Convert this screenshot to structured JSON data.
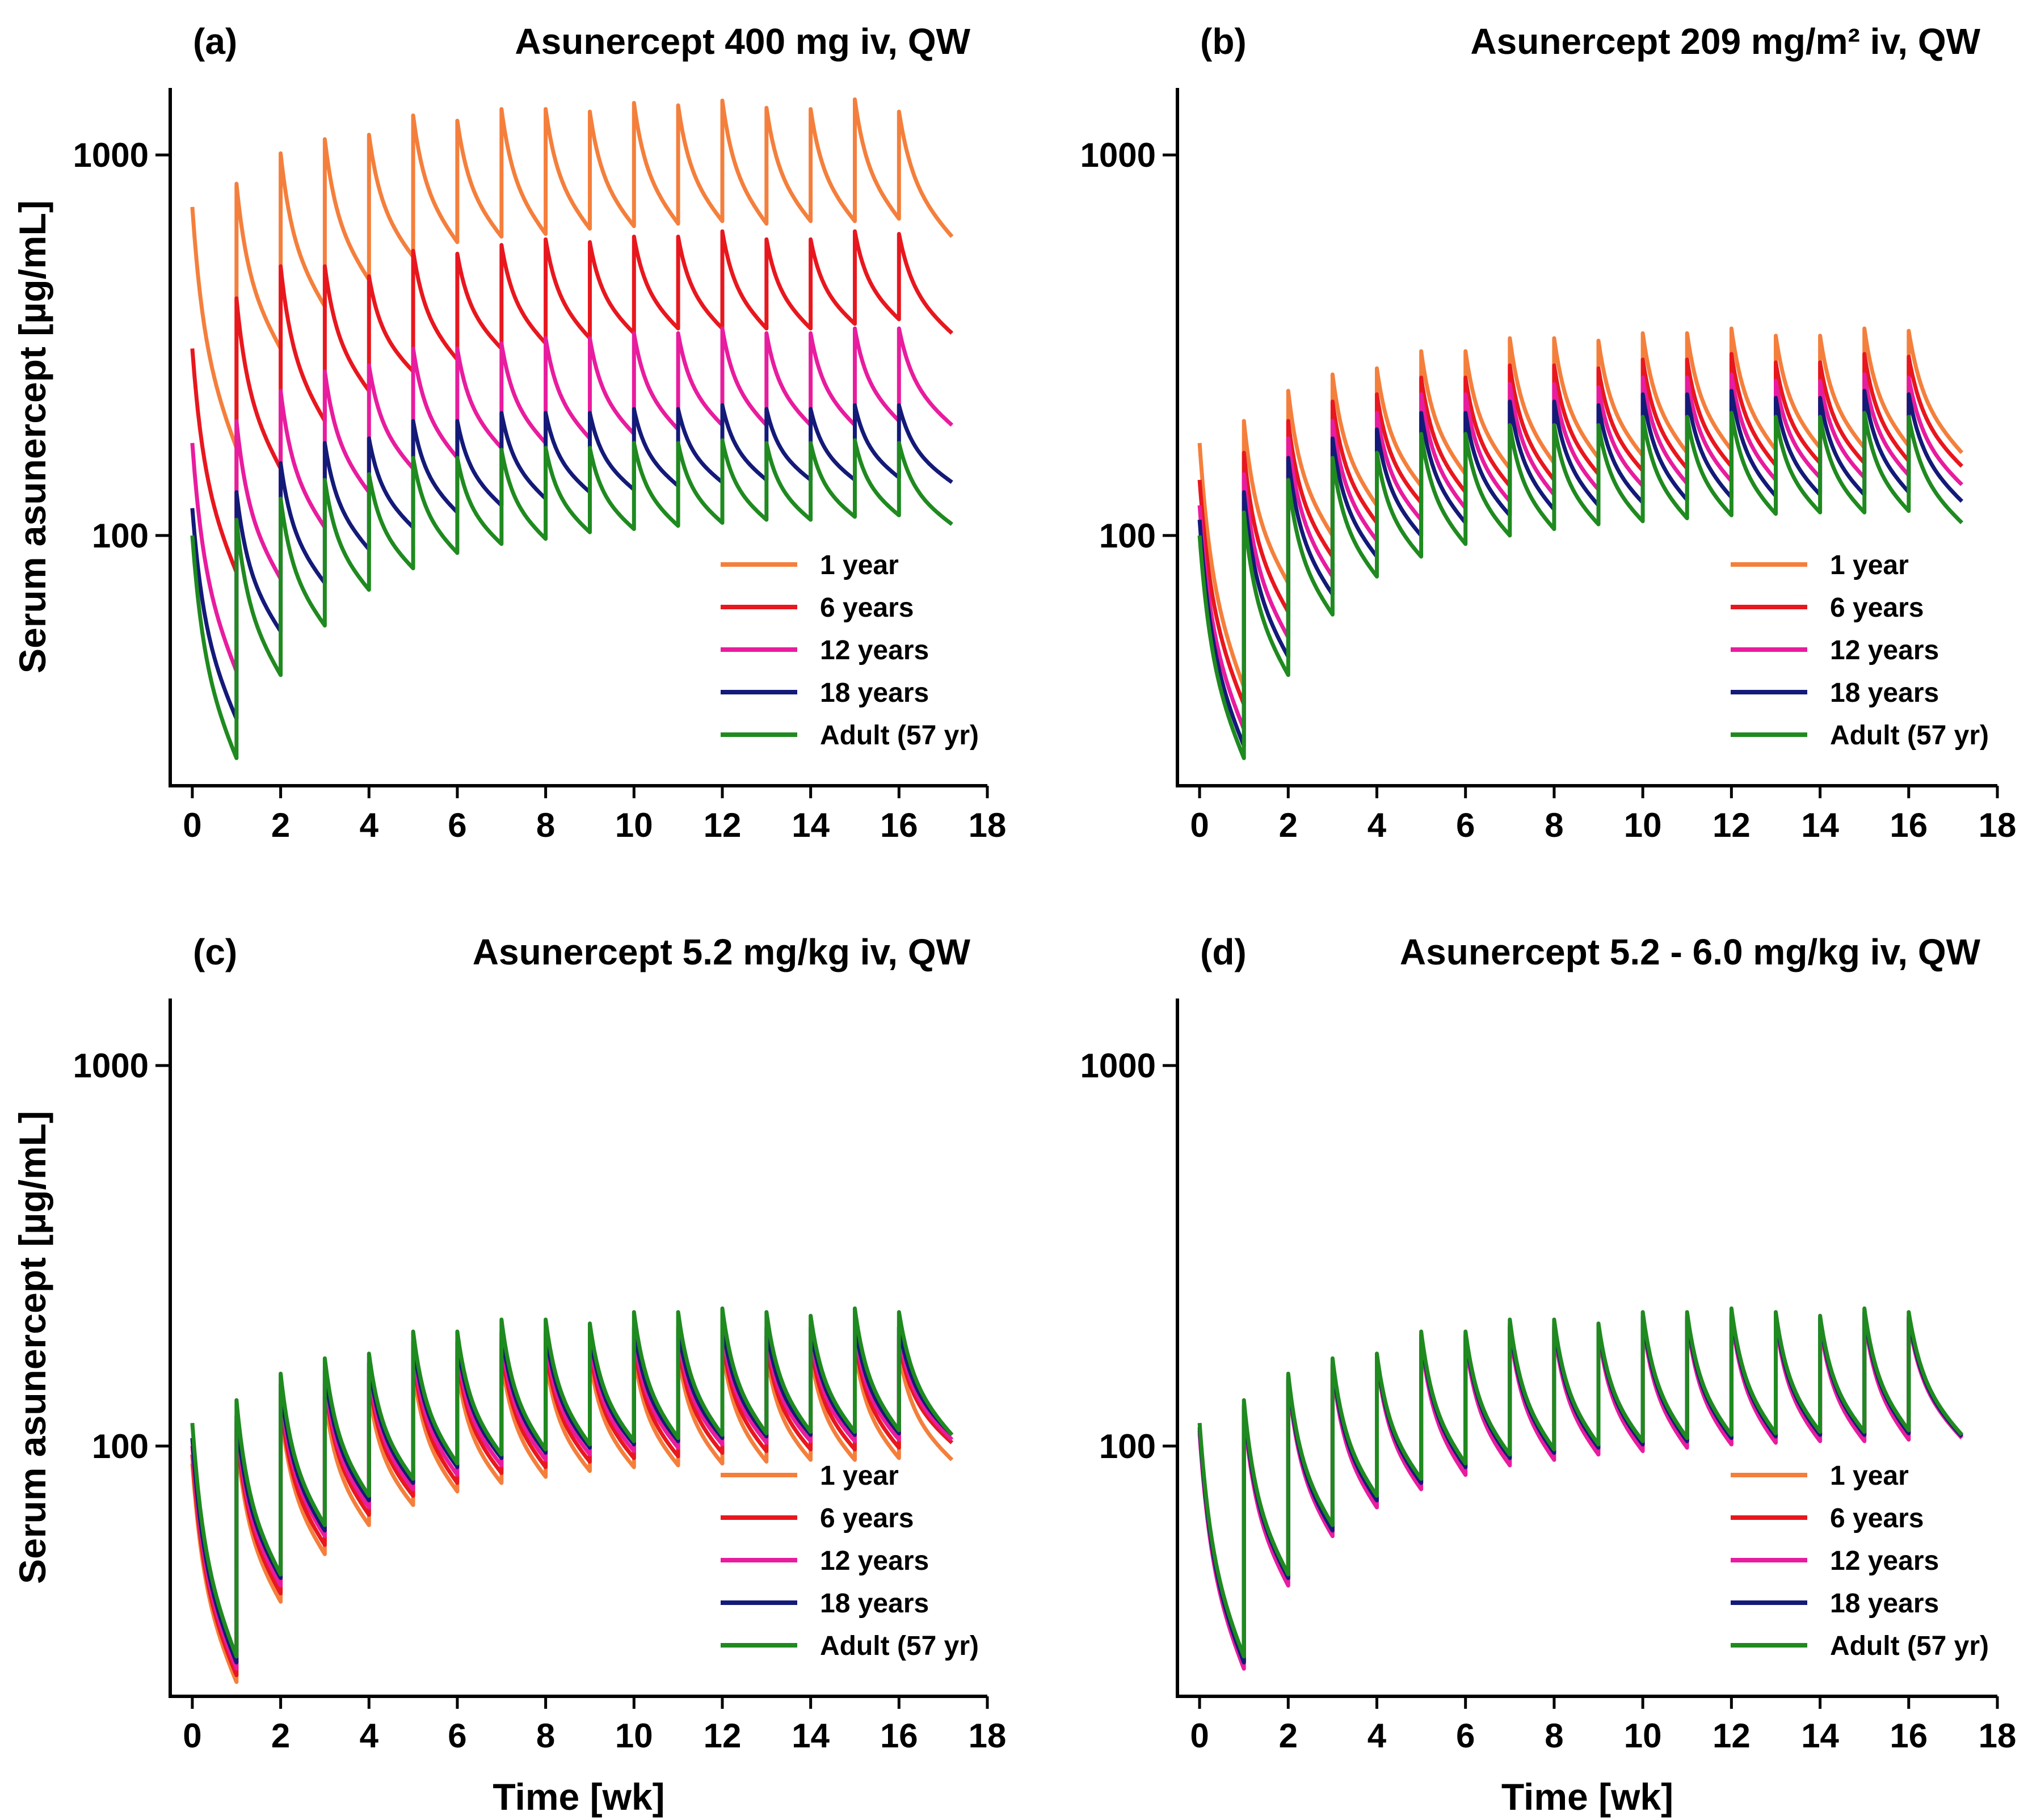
{
  "figure": {
    "x_axis_title": "Time [wk]",
    "y_axis_title": "Serum asunercept [µg/mL]"
  },
  "legend": {
    "entries": [
      {
        "label": "1 year",
        "color": "#f47f3c"
      },
      {
        "label": "6 years",
        "color": "#e8171e"
      },
      {
        "label": "12 years",
        "color": "#e81c9e"
      },
      {
        "label": "18 years",
        "color": "#141a78"
      },
      {
        "label": "Adult (57 yr)",
        "color": "#1f8a1f"
      }
    ]
  },
  "chart_data": [
    {
      "type": "line",
      "panel": "(a)",
      "title": "Asunercept 400 mg iv, QW",
      "xlabel": "",
      "ylabel": "Serum asunercept [µg/mL]",
      "yscale": "log",
      "xlim": [
        -0.5,
        18
      ],
      "ylim": [
        22,
        1500
      ],
      "xticks": [
        0,
        2,
        4,
        6,
        8,
        10,
        12,
        14,
        16,
        18
      ],
      "yticks": [
        100,
        1000
      ],
      "dosing_times_wk": [
        0,
        1,
        2,
        3,
        4,
        5,
        6,
        7,
        8,
        9,
        10,
        11,
        12,
        13,
        14,
        15,
        16
      ],
      "x_end_wk": 17.2,
      "series": [
        {
          "name": "1 year",
          "color": "#f47f3c",
          "peaks": [
            730,
            840,
            1010,
            1100,
            1130,
            1270,
            1230,
            1320,
            1320,
            1300,
            1370,
            1350,
            1390,
            1330,
            1320,
            1400,
            1300
          ],
          "troughs": [
            170,
            310,
            400,
            470,
            540,
            590,
            610,
            620,
            640,
            650,
            660,
            670,
            660,
            670,
            670,
            680,
            610
          ]
        },
        {
          "name": "6 years",
          "color": "#e8171e",
          "peaks": [
            310,
            420,
            510,
            510,
            480,
            560,
            550,
            580,
            600,
            590,
            610,
            610,
            630,
            600,
            600,
            630,
            620
          ],
          "troughs": [
            80,
            150,
            200,
            240,
            270,
            290,
            310,
            320,
            330,
            340,
            350,
            350,
            350,
            350,
            360,
            370,
            340
          ]
        },
        {
          "name": "12 years",
          "color": "#e81c9e",
          "peaks": [
            175,
            200,
            240,
            270,
            280,
            310,
            310,
            320,
            330,
            330,
            340,
            340,
            350,
            340,
            340,
            350,
            350
          ],
          "troughs": [
            44,
            77,
            105,
            130,
            150,
            160,
            170,
            175,
            180,
            185,
            190,
            195,
            195,
            195,
            195,
            200,
            195
          ]
        },
        {
          "name": "18 years",
          "color": "#141a78",
          "peaks": [
            118,
            130,
            155,
            175,
            180,
            200,
            200,
            210,
            210,
            210,
            215,
            215,
            220,
            215,
            215,
            220,
            220
          ],
          "troughs": [
            33,
            56,
            75,
            92,
            105,
            115,
            120,
            125,
            130,
            132,
            135,
            138,
            140,
            140,
            140,
            142,
            138
          ]
        },
        {
          "name": "Adult (57 yr)",
          "color": "#1f8a1f",
          "peaks": [
            100,
            110,
            125,
            140,
            145,
            160,
            160,
            168,
            170,
            170,
            175,
            175,
            178,
            175,
            175,
            178,
            175
          ],
          "troughs": [
            26,
            43,
            58,
            72,
            82,
            90,
            95,
            98,
            102,
            104,
            106,
            108,
            110,
            110,
            112,
            113,
            107
          ]
        }
      ]
    },
    {
      "type": "line",
      "panel": "(b)",
      "title": "Asunercept 209 mg/m² iv, QW",
      "xlabel": "",
      "ylabel": "",
      "yscale": "log",
      "xlim": [
        -0.5,
        18
      ],
      "ylim": [
        22,
        1500
      ],
      "xticks": [
        0,
        2,
        4,
        6,
        8,
        10,
        12,
        14,
        16,
        18
      ],
      "yticks": [
        100,
        1000
      ],
      "dosing_times_wk": [
        0,
        1,
        2,
        3,
        4,
        5,
        6,
        7,
        8,
        9,
        10,
        11,
        12,
        13,
        14,
        15,
        16
      ],
      "x_end_wk": 17.2,
      "series": [
        {
          "name": "1 year",
          "color": "#f47f3c",
          "peaks": [
            175,
            200,
            240,
            265,
            275,
            305,
            305,
            330,
            330,
            325,
            340,
            340,
            350,
            335,
            335,
            350,
            345
          ],
          "troughs": [
            40,
            75,
            100,
            120,
            135,
            145,
            150,
            155,
            160,
            162,
            165,
            168,
            168,
            170,
            170,
            172,
            165
          ]
        },
        {
          "name": "6 years",
          "color": "#e8171e",
          "peaks": [
            140,
            165,
            200,
            225,
            235,
            260,
            260,
            280,
            280,
            275,
            290,
            290,
            300,
            285,
            285,
            300,
            295
          ],
          "troughs": [
            36,
            63,
            88,
            108,
            122,
            130,
            135,
            140,
            145,
            148,
            150,
            152,
            153,
            155,
            155,
            157,
            152
          ]
        },
        {
          "name": "12 years",
          "color": "#e81c9e",
          "peaks": [
            120,
            145,
            180,
            200,
            210,
            235,
            235,
            250,
            250,
            245,
            260,
            260,
            265,
            255,
            255,
            265,
            260
          ],
          "troughs": [
            31,
            54,
            78,
            97,
            110,
            118,
            123,
            128,
            132,
            135,
            137,
            139,
            140,
            142,
            142,
            144,
            136
          ]
        },
        {
          "name": "18 years",
          "color": "#141a78",
          "peaks": [
            110,
            130,
            160,
            180,
            190,
            210,
            210,
            225,
            225,
            220,
            235,
            235,
            240,
            230,
            230,
            240,
            235
          ],
          "troughs": [
            28,
            48,
            70,
            88,
            100,
            108,
            113,
            117,
            120,
            122,
            124,
            126,
            127,
            128,
            128,
            130,
            123
          ]
        },
        {
          "name": "Adult (57 yr)",
          "color": "#1f8a1f",
          "peaks": [
            100,
            115,
            140,
            160,
            165,
            185,
            185,
            195,
            195,
            195,
            205,
            205,
            210,
            205,
            205,
            210,
            205
          ],
          "troughs": [
            26,
            43,
            62,
            78,
            88,
            95,
            100,
            104,
            107,
            109,
            111,
            113,
            114,
            115,
            115,
            116,
            108
          ]
        }
      ]
    },
    {
      "type": "line",
      "panel": "(c)",
      "title": "Asunercept 5.2 mg/kg iv, QW",
      "xlabel": "Time [wk]",
      "ylabel": "Serum asunercept [µg/mL]",
      "yscale": "log",
      "xlim": [
        -0.5,
        18
      ],
      "ylim": [
        22,
        1500
      ],
      "xticks": [
        0,
        2,
        4,
        6,
        8,
        10,
        12,
        14,
        16,
        18
      ],
      "yticks": [
        100,
        1000
      ],
      "dosing_times_wk": [
        0,
        1,
        2,
        3,
        4,
        5,
        6,
        7,
        8,
        9,
        10,
        11,
        12,
        13,
        14,
        15,
        16
      ],
      "x_end_wk": 17.2,
      "series": [
        {
          "name": "1 year",
          "color": "#f47f3c",
          "peaks": [
            90,
            105,
            125,
            135,
            140,
            160,
            160,
            170,
            170,
            170,
            175,
            175,
            180,
            175,
            175,
            180,
            175
          ],
          "troughs": [
            24,
            39,
            52,
            62,
            70,
            76,
            80,
            83,
            86,
            88,
            89,
            90,
            91,
            92,
            92,
            93,
            92
          ]
        },
        {
          "name": "6 years",
          "color": "#e8171e",
          "peaks": [
            95,
            110,
            130,
            145,
            150,
            170,
            170,
            180,
            180,
            180,
            185,
            185,
            190,
            185,
            185,
            190,
            185
          ],
          "troughs": [
            25,
            41,
            55,
            66,
            74,
            80,
            85,
            88,
            91,
            93,
            94,
            96,
            97,
            98,
            98,
            99,
            102
          ]
        },
        {
          "name": "12 years",
          "color": "#e81c9e",
          "peaks": [
            100,
            115,
            138,
            150,
            158,
            178,
            178,
            190,
            190,
            188,
            195,
            195,
            200,
            195,
            195,
            200,
            195
          ],
          "troughs": [
            26,
            43,
            58,
            69,
            77,
            84,
            89,
            92,
            95,
            97,
            99,
            101,
            102,
            103,
            103,
            104,
            104
          ]
        },
        {
          "name": "18 years",
          "color": "#141a78",
          "peaks": [
            105,
            120,
            145,
            158,
            165,
            188,
            188,
            200,
            200,
            198,
            205,
            205,
            210,
            205,
            205,
            210,
            205
          ],
          "troughs": [
            27,
            45,
            60,
            72,
            80,
            88,
            93,
            96,
            99,
            101,
            103,
            105,
            106,
            107,
            107,
            108,
            107
          ]
        },
        {
          "name": "Adult (57 yr)",
          "color": "#1f8a1f",
          "peaks": [
            115,
            132,
            155,
            170,
            175,
            200,
            200,
            215,
            215,
            210,
            225,
            225,
            230,
            225,
            220,
            230,
            225
          ],
          "troughs": [
            28,
            46,
            62,
            74,
            82,
            90,
            95,
            98,
            101,
            103,
            105,
            107,
            108,
            109,
            109,
            110,
            107
          ]
        }
      ]
    },
    {
      "type": "line",
      "panel": "(d)",
      "title": "Asunercept 5.2 - 6.0 mg/kg iv, QW",
      "xlabel": "Time [wk]",
      "ylabel": "",
      "yscale": "log",
      "xlim": [
        -0.5,
        18
      ],
      "ylim": [
        22,
        1500
      ],
      "xticks": [
        0,
        2,
        4,
        6,
        8,
        10,
        12,
        14,
        16,
        18
      ],
      "yticks": [
        100,
        1000
      ],
      "dosing_times_wk": [
        0,
        1,
        2,
        3,
        4,
        5,
        6,
        7,
        8,
        9,
        10,
        11,
        12,
        13,
        14,
        15,
        16
      ],
      "x_end_wk": 17.2,
      "series": [
        {
          "name": "1 year",
          "color": "#f47f3c",
          "peaks": [
            110,
            125,
            150,
            162,
            170,
            192,
            192,
            205,
            205,
            202,
            215,
            215,
            220,
            215,
            212,
            220,
            215
          ],
          "troughs": [
            27,
            45,
            60,
            72,
            80,
            88,
            93,
            96,
            99,
            101,
            103,
            105,
            106,
            107,
            107,
            108,
            106
          ]
        },
        {
          "name": "6 years",
          "color": "#e8171e",
          "peaks": [
            110,
            126,
            150,
            163,
            170,
            193,
            193,
            206,
            206,
            203,
            216,
            216,
            222,
            216,
            213,
            222,
            216
          ],
          "troughs": [
            27,
            45,
            60,
            72,
            80,
            88,
            93,
            96,
            99,
            101,
            103,
            105,
            106,
            107,
            107,
            108,
            106
          ]
        },
        {
          "name": "12 years",
          "color": "#e81c9e",
          "peaks": [
            108,
            124,
            148,
            160,
            168,
            190,
            190,
            203,
            203,
            200,
            213,
            213,
            219,
            213,
            210,
            219,
            213
          ],
          "troughs": [
            26,
            43,
            58,
            69,
            77,
            84,
            89,
            92,
            95,
            97,
            99,
            101,
            102,
            103,
            103,
            104,
            105
          ]
        },
        {
          "name": "18 years",
          "color": "#141a78",
          "peaks": [
            112,
            128,
            152,
            165,
            172,
            196,
            196,
            209,
            209,
            206,
            219,
            219,
            225,
            219,
            216,
            225,
            219
          ],
          "troughs": [
            27,
            45,
            60,
            72,
            80,
            88,
            93,
            96,
            99,
            101,
            103,
            105,
            106,
            107,
            107,
            108,
            106
          ]
        },
        {
          "name": "Adult (57 yr)",
          "color": "#1f8a1f",
          "peaks": [
            115,
            132,
            155,
            170,
            175,
            200,
            200,
            215,
            215,
            210,
            225,
            225,
            230,
            225,
            220,
            230,
            225
          ],
          "troughs": [
            28,
            46,
            62,
            74,
            82,
            90,
            95,
            98,
            101,
            103,
            105,
            107,
            108,
            109,
            109,
            110,
            107
          ]
        }
      ]
    }
  ]
}
